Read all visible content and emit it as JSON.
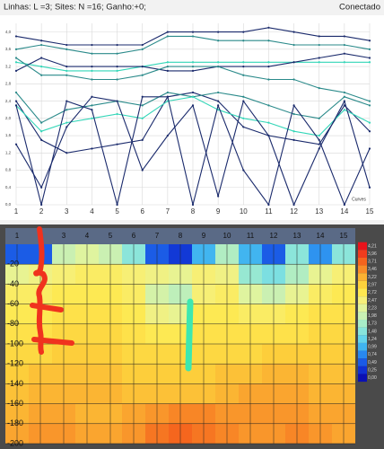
{
  "status_bar": {
    "left": "Linhas: L =3;  Sites: N =16;  Ganho:+0;",
    "right": "Conectado"
  },
  "chart_data": [
    {
      "type": "line",
      "x_label": "Curves",
      "x": [
        1,
        2,
        3,
        4,
        5,
        6,
        7,
        8,
        9,
        10,
        11,
        12,
        13,
        14,
        15
      ],
      "xlim": [
        1,
        15
      ],
      "xticks": [
        1,
        2,
        3,
        4,
        5,
        6,
        7,
        8,
        9,
        10,
        11,
        12,
        13,
        14,
        15
      ],
      "ylim": [
        0,
        4.2
      ],
      "yticks": [
        {
          "value": 0,
          "label": "0,0"
        },
        {
          "value": 0.4,
          "label": "0,4"
        },
        {
          "value": 0.8,
          "label": "0,8"
        },
        {
          "value": 1.2,
          "label": "1,2"
        },
        {
          "value": 1.6,
          "label": "1,6"
        },
        {
          "value": 2.0,
          "label": "2,0"
        },
        {
          "value": 2.4,
          "label": "2,4"
        },
        {
          "value": 2.8,
          "label": "2,8"
        },
        {
          "value": 3.2,
          "label": "3,2"
        },
        {
          "value": 3.6,
          "label": "3,6"
        },
        {
          "value": 4.0,
          "label": "4,0"
        }
      ],
      "grid": true,
      "series": [
        {
          "color": "#1a2a6c",
          "values": [
            3.9,
            3.8,
            3.7,
            3.7,
            3.7,
            3.7,
            4.0,
            4.0,
            4.0,
            4.0,
            4.1,
            4.0,
            3.9,
            3.9,
            3.8
          ]
        },
        {
          "color": "#2a8a8a",
          "values": [
            3.6,
            3.7,
            3.6,
            3.5,
            3.5,
            3.6,
            3.9,
            3.9,
            3.8,
            3.8,
            3.8,
            3.7,
            3.7,
            3.7,
            3.6
          ]
        },
        {
          "color": "#33d6b8",
          "values": [
            3.3,
            3.2,
            3.1,
            3.1,
            3.1,
            3.2,
            3.3,
            3.3,
            3.3,
            3.3,
            3.3,
            3.3,
            3.3,
            3.3,
            3.3
          ]
        },
        {
          "color": "#1a2a6c",
          "values": [
            3.1,
            3.4,
            3.2,
            3.2,
            3.2,
            3.2,
            3.1,
            3.1,
            3.2,
            3.2,
            3.2,
            3.3,
            3.4,
            3.5,
            3.4
          ]
        },
        {
          "color": "#2a8a8a",
          "values": [
            3.4,
            3.0,
            3.0,
            2.9,
            2.9,
            3.0,
            3.2,
            3.2,
            3.2,
            3.0,
            2.9,
            2.9,
            2.7,
            2.6,
            2.4
          ]
        },
        {
          "color": "#1a2a6c",
          "values": [
            2.4,
            1.5,
            1.2,
            1.3,
            1.4,
            1.5,
            2.5,
            2.6,
            2.4,
            1.8,
            1.6,
            1.5,
            1.4,
            2.3,
            1.7
          ]
        },
        {
          "color": "#2a8a8a",
          "values": [
            2.6,
            1.9,
            2.2,
            2.3,
            2.4,
            2.3,
            2.6,
            2.5,
            2.6,
            2.5,
            2.3,
            2.1,
            2.0,
            2.5,
            2.3
          ]
        },
        {
          "color": "#33d6b8",
          "values": [
            2.3,
            1.7,
            1.9,
            2.0,
            2.1,
            2.0,
            2.4,
            2.5,
            2.2,
            2.0,
            1.9,
            1.7,
            1.6,
            2.2,
            1.9
          ]
        },
        {
          "color": "#1a2a6c",
          "values": [
            2.3,
            0.0,
            2.4,
            2.2,
            0.0,
            2.5,
            2.5,
            0.0,
            2.3,
            0.8,
            0.0,
            2.3,
            1.5,
            0.0,
            1.3
          ]
        },
        {
          "color": "#1a2a6c",
          "values": [
            1.4,
            0.4,
            1.8,
            2.5,
            2.4,
            0.8,
            1.6,
            2.3,
            0.2,
            2.4,
            1.6,
            0.0,
            1.3,
            2.4,
            0.4
          ]
        }
      ]
    },
    {
      "type": "heatmap",
      "x": [
        1,
        2,
        3,
        4,
        5,
        6,
        7,
        8,
        9,
        10,
        11,
        12,
        13,
        14,
        15
      ],
      "y": [
        -10,
        -30,
        -50,
        -70,
        -90,
        -110,
        -130,
        -150,
        -170,
        -190
      ],
      "xlim": [
        0.5,
        15.5
      ],
      "xticks": [
        1,
        2,
        3,
        4,
        5,
        6,
        7,
        8,
        9,
        10,
        11,
        12,
        13,
        14,
        15
      ],
      "ylim": [
        -200,
        0
      ],
      "yticks": [
        -20,
        -40,
        -60,
        -80,
        -100,
        -120,
        -140,
        -160,
        -180,
        -200
      ],
      "grid": true,
      "z": [
        [
          0.5,
          0.5,
          2.0,
          2.2,
          2.0,
          1.5,
          0.5,
          0.3,
          1.0,
          1.8,
          1.0,
          0.5,
          1.5,
          0.8,
          1.5
        ],
        [
          2.3,
          2.4,
          2.5,
          2.6,
          2.6,
          2.5,
          2.4,
          2.3,
          2.5,
          2.4,
          1.6,
          1.4,
          1.8,
          2.3,
          2.5
        ],
        [
          2.6,
          2.6,
          2.7,
          2.7,
          2.7,
          2.6,
          2.1,
          1.9,
          2.5,
          2.6,
          2.2,
          2.0,
          2.3,
          2.6,
          2.7
        ],
        [
          2.7,
          2.7,
          2.8,
          2.8,
          2.8,
          2.7,
          2.4,
          2.3,
          2.7,
          2.7,
          2.6,
          2.6,
          2.7,
          2.8,
          2.8
        ],
        [
          2.8,
          2.8,
          2.9,
          2.9,
          2.9,
          2.8,
          2.7,
          2.7,
          2.8,
          2.8,
          2.8,
          2.8,
          2.8,
          2.9,
          2.9
        ],
        [
          2.9,
          2.9,
          3.0,
          3.0,
          3.0,
          2.9,
          2.9,
          2.9,
          2.9,
          2.9,
          2.9,
          3.0,
          3.0,
          3.0,
          3.0
        ],
        [
          3.0,
          3.1,
          3.1,
          3.1,
          3.1,
          3.0,
          3.0,
          3.0,
          3.0,
          3.1,
          3.1,
          3.2,
          3.2,
          3.1,
          3.1
        ],
        [
          3.1,
          3.2,
          3.2,
          3.2,
          3.2,
          3.1,
          3.1,
          3.1,
          3.1,
          3.2,
          3.3,
          3.3,
          3.3,
          3.2,
          3.2
        ],
        [
          3.2,
          3.3,
          3.3,
          3.2,
          3.2,
          3.3,
          3.4,
          3.5,
          3.5,
          3.4,
          3.4,
          3.4,
          3.4,
          3.3,
          3.3
        ],
        [
          3.3,
          3.4,
          3.4,
          3.3,
          3.3,
          3.4,
          3.6,
          3.7,
          3.6,
          3.5,
          3.4,
          3.4,
          3.5,
          3.4,
          3.3
        ]
      ],
      "cticks": [
        {
          "value": 4.21,
          "label": "4,21"
        },
        {
          "value": 3.96,
          "label": "3,96"
        },
        {
          "value": 3.71,
          "label": "3,71"
        },
        {
          "value": 3.46,
          "label": "3,46"
        },
        {
          "value": 3.22,
          "label": "3,22"
        },
        {
          "value": 2.97,
          "label": "2,97"
        },
        {
          "value": 2.72,
          "label": "2,72"
        },
        {
          "value": 2.47,
          "label": "2,47"
        },
        {
          "value": 2.23,
          "label": "2,23"
        },
        {
          "value": 1.98,
          "label": "1,98"
        },
        {
          "value": 1.73,
          "label": "1,73"
        },
        {
          "value": 1.48,
          "label": "1,48"
        },
        {
          "value": 1.24,
          "label": "1,24"
        },
        {
          "value": 0.99,
          "label": "0,99"
        },
        {
          "value": 0.74,
          "label": "0,74"
        },
        {
          "value": 0.49,
          "label": "0,49"
        },
        {
          "value": 0.25,
          "label": "0,25"
        },
        {
          "value": 0,
          "label": "0,00"
        }
      ],
      "colors": [
        "#e8141c",
        "#f03c1e",
        "#f5641e",
        "#f88c28",
        "#fbb232",
        "#fdd23c",
        "#fee850",
        "#f6f07a",
        "#e2f49c",
        "#c8f0b4",
        "#a8ecc8",
        "#88e4dc",
        "#64d4ec",
        "#40b4f0",
        "#2888f0",
        "#1a5ae6",
        "#1030d2",
        "#0a10b4"
      ]
    }
  ]
}
